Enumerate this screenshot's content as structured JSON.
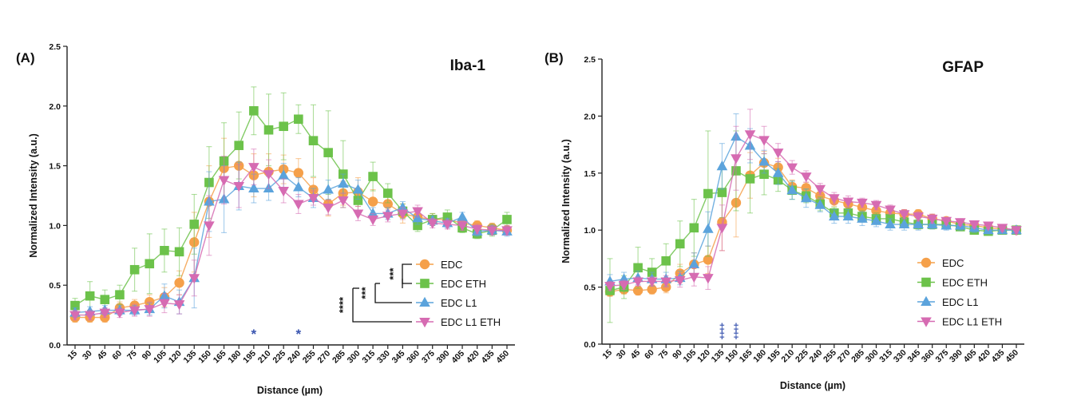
{
  "chart_data": [
    {
      "type": "line",
      "panel_label": "(A)",
      "title": "Iba-1",
      "xlabel": "Distance (µm)",
      "ylabel": "Normalized Intensity (a.u.)",
      "ylim": [
        0,
        2.5
      ],
      "yticks": [
        "0.0",
        "0.5",
        "1.0",
        "1.5",
        "2.0",
        "2.5"
      ],
      "categories": [
        "15",
        "30",
        "45",
        "60",
        "75",
        "90",
        "105",
        "120",
        "135",
        "150",
        "165",
        "180",
        "195",
        "210",
        "225",
        "240",
        "255",
        "270",
        "285",
        "300",
        "315",
        "330",
        "345",
        "360",
        "375",
        "390",
        "405",
        "420",
        "435",
        "450"
      ],
      "series": [
        {
          "name": "EDC",
          "color": "#f5a04a",
          "marker": "circle",
          "values": [
            0.23,
            0.23,
            0.23,
            0.31,
            0.33,
            0.36,
            0.4,
            0.52,
            0.86,
            1.2,
            1.48,
            1.5,
            1.42,
            1.45,
            1.47,
            1.44,
            1.3,
            1.18,
            1.27,
            1.28,
            1.2,
            1.18,
            1.1,
            1.07,
            1.05,
            1.05,
            1.02,
            1.0,
            0.98,
            0.96
          ],
          "errors": [
            0.04,
            0.04,
            0.04,
            0.05,
            0.05,
            0.06,
            0.08,
            0.1,
            0.25,
            0.3,
            0.25,
            0.2,
            0.18,
            0.15,
            0.12,
            0.12,
            0.1,
            0.1,
            0.1,
            0.12,
            0.1,
            0.08,
            0.08,
            0.06,
            0.05,
            0.05,
            0.05,
            0.04,
            0.04,
            0.04
          ]
        },
        {
          "name": "EDC ETH",
          "color": "#6cc24a",
          "marker": "square",
          "values": [
            0.33,
            0.41,
            0.38,
            0.42,
            0.63,
            0.68,
            0.79,
            0.78,
            1.01,
            1.36,
            1.54,
            1.67,
            1.96,
            1.8,
            1.83,
            1.89,
            1.71,
            1.61,
            1.43,
            1.21,
            1.41,
            1.27,
            1.12,
            1.0,
            1.05,
            1.07,
            0.98,
            0.93,
            0.96,
            1.05
          ],
          "errors": [
            0.06,
            0.12,
            0.08,
            0.08,
            0.18,
            0.25,
            0.18,
            0.2,
            0.25,
            0.3,
            0.32,
            0.28,
            0.2,
            0.3,
            0.28,
            0.12,
            0.3,
            0.35,
            0.28,
            0.1,
            0.12,
            0.08,
            0.06,
            0.05,
            0.05,
            0.06,
            0.04,
            0.04,
            0.05,
            0.06
          ]
        },
        {
          "name": "EDC L1",
          "color": "#5ba3dc",
          "marker": "triangle",
          "values": [
            0.27,
            0.28,
            0.29,
            0.29,
            0.29,
            0.3,
            0.41,
            0.36,
            0.56,
            1.2,
            1.22,
            1.33,
            1.31,
            1.31,
            1.42,
            1.32,
            1.23,
            1.3,
            1.35,
            1.3,
            1.1,
            1.1,
            1.15,
            1.06,
            1.04,
            1.02,
            1.07,
            0.95,
            0.96,
            0.95
          ],
          "errors": [
            0.04,
            0.04,
            0.04,
            0.04,
            0.04,
            0.05,
            0.1,
            0.1,
            0.25,
            0.25,
            0.28,
            0.2,
            0.12,
            0.1,
            0.1,
            0.08,
            0.08,
            0.08,
            0.08,
            0.08,
            0.05,
            0.05,
            0.05,
            0.05,
            0.04,
            0.04,
            0.04,
            0.04,
            0.04,
            0.04
          ]
        },
        {
          "name": "EDC L1 ETH",
          "color": "#d66bb2",
          "marker": "triangle-down",
          "values": [
            0.25,
            0.25,
            0.27,
            0.27,
            0.29,
            0.3,
            0.35,
            0.34,
            0.56,
            1.0,
            1.38,
            1.33,
            1.49,
            1.43,
            1.29,
            1.18,
            1.23,
            1.15,
            1.21,
            1.1,
            1.05,
            1.08,
            1.1,
            1.12,
            1.02,
            1.01,
            1.0,
            0.97,
            0.96,
            0.96
          ],
          "errors": [
            0.04,
            0.04,
            0.04,
            0.04,
            0.05,
            0.06,
            0.08,
            0.08,
            0.15,
            0.25,
            0.2,
            0.18,
            0.15,
            0.12,
            0.1,
            0.08,
            0.06,
            0.06,
            0.06,
            0.06,
            0.05,
            0.05,
            0.05,
            0.05,
            0.04,
            0.04,
            0.04,
            0.04,
            0.04,
            0.04
          ]
        }
      ],
      "significance_markers": [
        {
          "category": "195",
          "symbol": "*"
        },
        {
          "category": "240",
          "symbol": "*"
        }
      ],
      "legend": {
        "position": "bottom-right",
        "comparisons": [
          {
            "stars": "***",
            "between": [
              "EDC",
              "EDC ETH"
            ]
          },
          {
            "stars": "***",
            "between": [
              "EDC ETH",
              "EDC L1"
            ]
          },
          {
            "stars": "****",
            "between": [
              "EDC ETH",
              "EDC L1 ETH"
            ]
          }
        ]
      },
      "grid": false
    },
    {
      "type": "line",
      "panel_label": "(B)",
      "title": "GFAP",
      "xlabel": "Distance (µm)",
      "ylabel": "Normalized Intensity (a.u.)",
      "ylim": [
        0,
        2.5
      ],
      "yticks": [
        "0.0",
        "0.5",
        "1.0",
        "1.5",
        "2.0",
        "2.5"
      ],
      "categories": [
        "15",
        "30",
        "45",
        "60",
        "75",
        "90",
        "105",
        "120",
        "135",
        "150",
        "165",
        "180",
        "195",
        "210",
        "225",
        "240",
        "255",
        "270",
        "285",
        "300",
        "315",
        "330",
        "345",
        "360",
        "375",
        "390",
        "405",
        "420",
        "435",
        "450"
      ],
      "series": [
        {
          "name": "EDC",
          "color": "#f5a04a",
          "marker": "circle",
          "values": [
            0.46,
            0.48,
            0.47,
            0.48,
            0.5,
            0.62,
            0.7,
            0.74,
            1.07,
            1.24,
            1.48,
            1.59,
            1.55,
            1.38,
            1.37,
            1.3,
            1.26,
            1.23,
            1.2,
            1.17,
            1.15,
            1.14,
            1.14,
            1.1,
            1.08,
            1.05,
            1.04,
            1.02,
            1.01,
            1.0
          ],
          "errors": [
            0.04,
            0.04,
            0.04,
            0.04,
            0.05,
            0.08,
            0.1,
            0.12,
            0.25,
            0.3,
            0.2,
            0.1,
            0.08,
            0.06,
            0.05,
            0.05,
            0.05,
            0.05,
            0.05,
            0.04,
            0.04,
            0.04,
            0.04,
            0.04,
            0.03,
            0.03,
            0.03,
            0.03,
            0.03,
            0.03
          ]
        },
        {
          "name": "EDC ETH",
          "color": "#6cc24a",
          "marker": "square",
          "values": [
            0.47,
            0.5,
            0.67,
            0.63,
            0.73,
            0.88,
            1.02,
            1.32,
            1.33,
            1.52,
            1.45,
            1.49,
            1.44,
            1.35,
            1.3,
            1.23,
            1.15,
            1.15,
            1.12,
            1.1,
            1.1,
            1.07,
            1.05,
            1.05,
            1.05,
            1.03,
            1.0,
            0.99,
            1.0,
            1.0
          ],
          "errors": [
            0.28,
            0.1,
            0.18,
            0.12,
            0.15,
            0.2,
            0.25,
            0.55,
            0.22,
            0.35,
            0.3,
            0.18,
            0.1,
            0.08,
            0.06,
            0.06,
            0.05,
            0.05,
            0.05,
            0.05,
            0.04,
            0.04,
            0.04,
            0.04,
            0.03,
            0.03,
            0.03,
            0.03,
            0.03,
            0.03
          ]
        },
        {
          "name": "EDC L1",
          "color": "#5ba3dc",
          "marker": "triangle",
          "values": [
            0.55,
            0.57,
            0.58,
            0.57,
            0.57,
            0.58,
            0.7,
            1.01,
            1.56,
            1.82,
            1.74,
            1.6,
            1.5,
            1.35,
            1.28,
            1.22,
            1.12,
            1.12,
            1.1,
            1.08,
            1.05,
            1.05,
            1.05,
            1.05,
            1.04,
            1.04,
            1.02,
            1.0,
            1.0,
            1.0
          ],
          "errors": [
            0.06,
            0.06,
            0.06,
            0.06,
            0.06,
            0.06,
            0.1,
            0.15,
            0.2,
            0.2,
            0.15,
            0.1,
            0.1,
            0.08,
            0.08,
            0.06,
            0.06,
            0.06,
            0.06,
            0.05,
            0.05,
            0.05,
            0.05,
            0.04,
            0.04,
            0.04,
            0.04,
            0.03,
            0.03,
            0.03
          ]
        },
        {
          "name": "EDC L1 ETH",
          "color": "#d66bb2",
          "marker": "triangle-down",
          "values": [
            0.51,
            0.52,
            0.55,
            0.55,
            0.55,
            0.56,
            0.59,
            0.58,
            1.02,
            1.63,
            1.84,
            1.79,
            1.68,
            1.55,
            1.47,
            1.36,
            1.28,
            1.25,
            1.24,
            1.22,
            1.18,
            1.14,
            1.12,
            1.1,
            1.08,
            1.07,
            1.05,
            1.04,
            1.02,
            1.0
          ],
          "errors": [
            0.04,
            0.04,
            0.04,
            0.04,
            0.05,
            0.06,
            0.08,
            0.1,
            0.2,
            0.28,
            0.22,
            0.12,
            0.08,
            0.06,
            0.05,
            0.05,
            0.05,
            0.05,
            0.04,
            0.04,
            0.04,
            0.04,
            0.04,
            0.04,
            0.03,
            0.03,
            0.03,
            0.03,
            0.03,
            0.03
          ]
        }
      ],
      "significance_markers": [
        {
          "category": "135",
          "symbol": "‡"
        },
        {
          "category": "150",
          "symbol": "‡"
        }
      ],
      "legend": {
        "position": "right"
      },
      "grid": false
    }
  ]
}
